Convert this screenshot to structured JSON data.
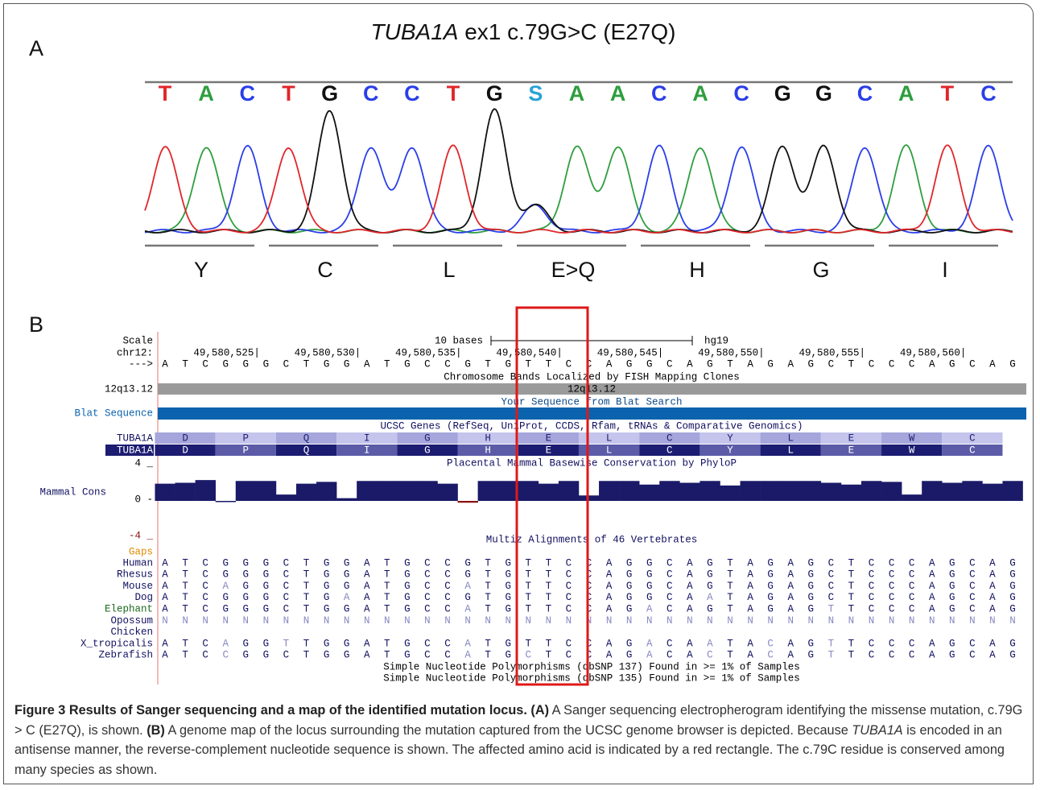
{
  "panel_a": {
    "label": "A",
    "title_gene": "TUBA1A",
    "title_rest": "ex1 c.79G>C (E27Q)",
    "bases": [
      "T",
      "A",
      "C",
      "T",
      "G",
      "C",
      "C",
      "T",
      "G",
      "S",
      "A",
      "A",
      "C",
      "A",
      "C",
      "G",
      "G",
      "C",
      "A",
      "T",
      "C"
    ],
    "base_colors": {
      "A": "#2e9e3e",
      "C": "#2a3ee8",
      "G": "#111111",
      "T": "#e0262a",
      "S": "#29a3d6"
    },
    "amino_acids": [
      "Y",
      "C",
      "L",
      "E>Q",
      "H",
      "G",
      "I"
    ]
  },
  "panel_b": {
    "label": "B",
    "scale_label": "Scale",
    "scale_text": "10 bases",
    "assembly": "hg19",
    "chrom_label": "chr12:",
    "strand_label": "--->",
    "coordinates": [
      "49,580,525|",
      "49,580,530|",
      "49,580,535|",
      "49,580,540|",
      "49,580,545|",
      "49,580,550|",
      "49,580,555|",
      "49,580,560|"
    ],
    "sequence": [
      "A",
      "T",
      "C",
      "G",
      "G",
      "G",
      "C",
      "T",
      "G",
      "G",
      "A",
      "T",
      "G",
      "C",
      "C",
      "G",
      "T",
      "G",
      "T",
      "T",
      "C",
      "C",
      "A",
      "G",
      "G",
      "C",
      "A",
      "G",
      "T",
      "A",
      "G",
      "A",
      "G",
      "C",
      "T",
      "C",
      "C",
      "C",
      "A",
      "G",
      "C",
      "A",
      "G"
    ],
    "band_track": "Chromosome Bands Localized by FISH Mapping Clones",
    "band_label": "12q13.12",
    "band_name": "12q13.12",
    "blat_track": "Your Sequence from Blat Search",
    "blat_label": "Blat Sequence",
    "genes_track": "UCSC Genes (RefSeq, UniProt, CCDS, Rfam, tRNAs & Comparative Genomics)",
    "gene_labels": [
      "TUBA1A",
      "TUBA1A"
    ],
    "gene_amino_acids": [
      "D",
      "P",
      "Q",
      "I",
      "G",
      "H",
      "E",
      "L",
      "C",
      "Y",
      "L",
      "E",
      "W",
      "C"
    ],
    "conservation": {
      "title": "Placental Mammal Basewise Conservation by PhyloP",
      "label": "Mammal Cons",
      "ylim": [
        -4,
        4
      ],
      "yticks": [
        {
          "value": 4,
          "label": "4 _"
        },
        {
          "value": 0,
          "label": "0 -"
        },
        {
          "value": -4,
          "label": "-4 _"
        }
      ],
      "values": [
        1.9,
        2.0,
        2.3,
        0,
        2.2,
        2.2,
        0.7,
        1.9,
        2.1,
        0.3,
        2.2,
        2.2,
        2.2,
        2.2,
        1.9,
        -0.2,
        2.2,
        2.2,
        2.2,
        1.9,
        2.2,
        0.6,
        2.2,
        2.2,
        1.8,
        2.2,
        2.0,
        2.2,
        1.7,
        2.2,
        2.2,
        2.2,
        2.2,
        2.0,
        1.8,
        2.2,
        2.1,
        0.7,
        2.2,
        2.0,
        2.2,
        1.9,
        2.2
      ]
    },
    "multiz_track": "Multiz Alignments of 46 Vertebrates",
    "gaps_label": "Gaps",
    "species": [
      {
        "name": "Human",
        "letters": [
          "A",
          "T",
          "C",
          "G",
          "G",
          "G",
          "C",
          "T",
          "G",
          "G",
          "A",
          "T",
          "G",
          "C",
          "C",
          "G",
          "T",
          "G",
          "T",
          "T",
          "C",
          "C",
          "A",
          "G",
          "G",
          "C",
          "A",
          "G",
          "T",
          "A",
          "G",
          "A",
          "G",
          "C",
          "T",
          "C",
          "C",
          "C",
          "A",
          "G",
          "C",
          "A",
          "G"
        ]
      },
      {
        "name": "Rhesus",
        "letters": [
          "A",
          "T",
          "C",
          "G",
          "G",
          "G",
          "C",
          "T",
          "G",
          "G",
          "A",
          "T",
          "G",
          "C",
          "C",
          "G",
          "T",
          "G",
          "T",
          "T",
          "C",
          "C",
          "A",
          "G",
          "G",
          "C",
          "A",
          "G",
          "T",
          "A",
          "G",
          "A",
          "G",
          "C",
          "T",
          "C",
          "C",
          "C",
          "A",
          "G",
          "C",
          "A",
          "G"
        ]
      },
      {
        "name": "Mouse",
        "letters": [
          "A",
          "T",
          "C",
          "A",
          "G",
          "G",
          "C",
          "T",
          "G",
          "G",
          "A",
          "T",
          "G",
          "C",
          "C",
          "A",
          "T",
          "G",
          "T",
          "T",
          "C",
          "C",
          "A",
          "G",
          "G",
          "C",
          "A",
          "G",
          "T",
          "A",
          "G",
          "A",
          "G",
          "C",
          "T",
          "C",
          "C",
          "C",
          "A",
          "G",
          "C",
          "A",
          "G"
        ]
      },
      {
        "name": "Dog",
        "letters": [
          "A",
          "T",
          "C",
          "G",
          "G",
          "G",
          "C",
          "T",
          "G",
          "A",
          "A",
          "T",
          "G",
          "C",
          "C",
          "G",
          "T",
          "G",
          "T",
          "T",
          "C",
          "C",
          "A",
          "G",
          "G",
          "C",
          "A",
          "A",
          "T",
          "A",
          "G",
          "A",
          "G",
          "C",
          "T",
          "C",
          "C",
          "C",
          "A",
          "G",
          "C",
          "A",
          "G"
        ]
      },
      {
        "name": "Elephant",
        "letters": [
          "A",
          "T",
          "C",
          "G",
          "G",
          "G",
          "C",
          "T",
          "G",
          "G",
          "A",
          "T",
          "G",
          "C",
          "C",
          "A",
          "T",
          "G",
          "T",
          "T",
          "C",
          "C",
          "A",
          "G",
          "A",
          "C",
          "A",
          "G",
          "T",
          "A",
          "G",
          "A",
          "G",
          "T",
          "T",
          "C",
          "C",
          "C",
          "A",
          "G",
          "C",
          "A",
          "G"
        ]
      },
      {
        "name": "Opossum",
        "letters": [
          "N",
          "N",
          "N",
          "N",
          "N",
          "N",
          "N",
          "N",
          "N",
          "N",
          "N",
          "N",
          "N",
          "N",
          "N",
          "N",
          "N",
          "N",
          "N",
          "N",
          "N",
          "N",
          "N",
          "N",
          "N",
          "N",
          "N",
          "N",
          "N",
          "N",
          "N",
          "N",
          "N",
          "N",
          "N",
          "N",
          "N",
          "N",
          "N",
          "N",
          "N",
          "N",
          "N"
        ]
      },
      {
        "name": "Chicken",
        "letters": []
      },
      {
        "name": "X_tropicalis",
        "letters": [
          "A",
          "T",
          "C",
          "A",
          "G",
          "G",
          "T",
          "T",
          "G",
          "G",
          "A",
          "T",
          "G",
          "C",
          "C",
          "A",
          "T",
          "G",
          "T",
          "T",
          "C",
          "C",
          "A",
          "G",
          "A",
          "C",
          "A",
          "A",
          "T",
          "A",
          "C",
          "A",
          "G",
          "T",
          "T",
          "C",
          "C",
          "C",
          "A",
          "G",
          "C",
          "A",
          "G"
        ]
      },
      {
        "name": "Zebrafish",
        "letters": [
          "A",
          "T",
          "C",
          "C",
          "G",
          "G",
          "C",
          "T",
          "G",
          "G",
          "A",
          "T",
          "G",
          "C",
          "C",
          "A",
          "T",
          "G",
          "C",
          "T",
          "C",
          "C",
          "A",
          "G",
          "A",
          "C",
          "A",
          "C",
          "T",
          "A",
          "C",
          "A",
          "G",
          "T",
          "T",
          "C",
          "C",
          "C",
          "A",
          "G",
          "C",
          "A",
          "G"
        ]
      }
    ],
    "snp_tracks": [
      "Simple Nucleotide Polymorphisms (dbSNP 137) Found in >= 1% of Samples",
      "Simple Nucleotide Polymorphisms (dbSNP 135) Found in >= 1% of Samples"
    ]
  },
  "caption": [
    "Figure 3 Results of Sanger sequencing and a map of the identified mutation locus.",
    "(A)",
    "A Sanger sequencing electropherogram identifying the missense mutation, c.79G > C (E27Q), is shown.",
    "(B)",
    "A genome map of the locus surrounding the mutation captured from the UCSC genome browser is depicted. Because",
    "TUBA1A",
    "is encoded in an antisense manner, the reverse-complement nucleotide sequence is shown. The affected amino acid is indicated by a red rectangle. The c.79C residue is conserved among many species as shown."
  ]
}
